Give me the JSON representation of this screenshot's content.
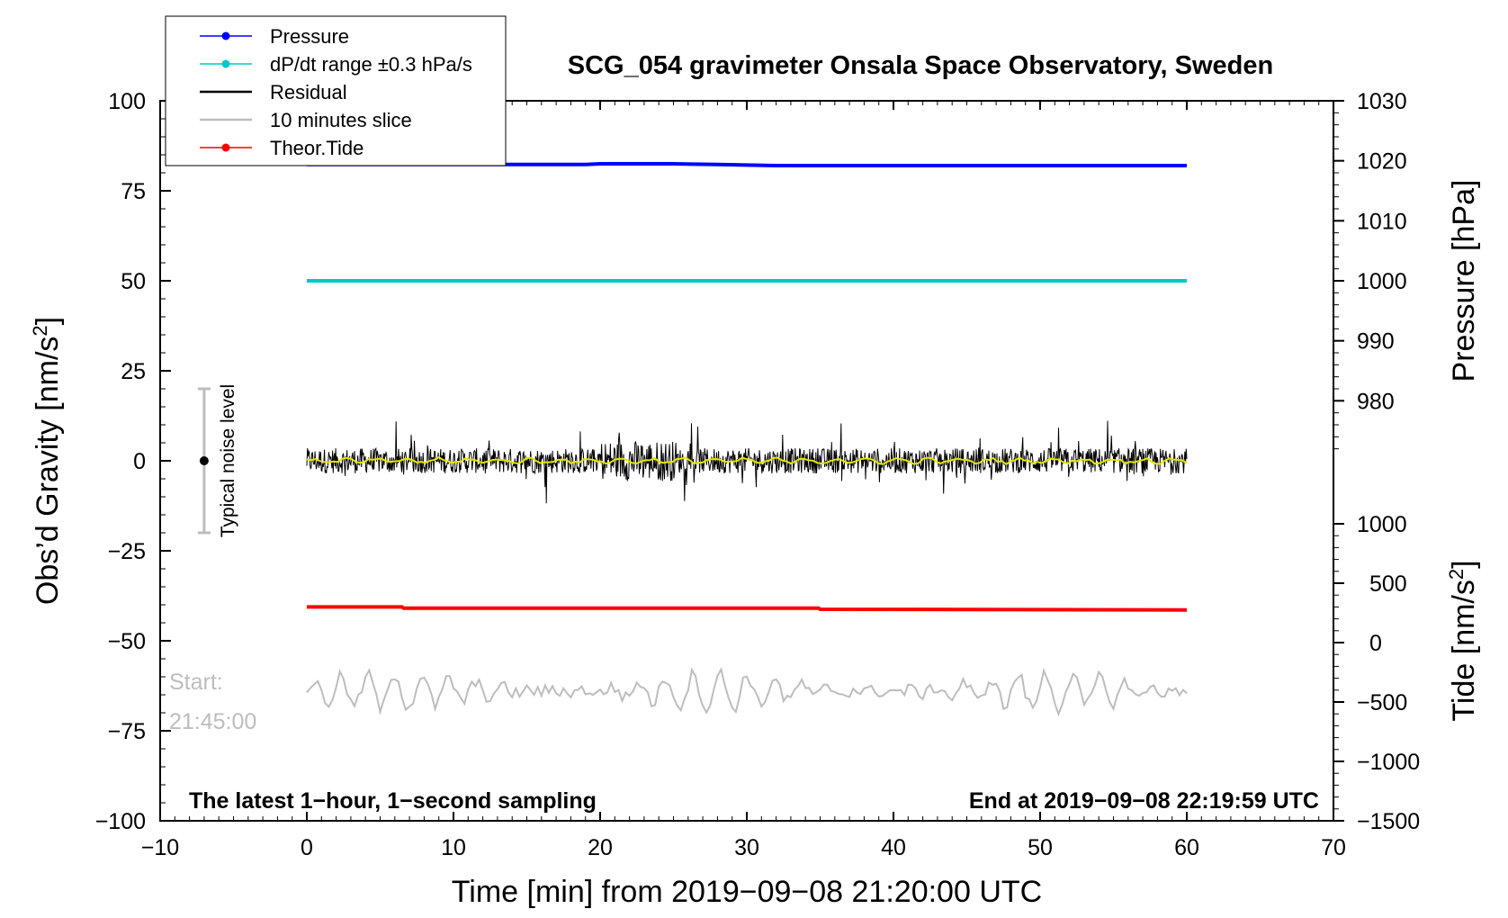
{
  "chart_data": {
    "type": "line",
    "title": "SCG_054 gravimeter Onsala Space Observatory, Sweden",
    "xlabel": "Time [min] from 2019−09−08 21:20:00 UTC",
    "ylabel_left": "Obs’d Gravity [nm/s",
    "ylabel_left_sup": "2",
    "ylabel_left_close": "]",
    "ylabel_right_pressure": "Pressure [hPa]",
    "ylabel_right_tide": "Tide [nm/s",
    "ylabel_right_tide_sup": "2",
    "ylabel_right_tide_close": "]",
    "xlim": [
      -10,
      70
    ],
    "ylim": [
      -100,
      100
    ],
    "x_ticks": [
      {
        "value": -10,
        "label": "−10"
      },
      {
        "value": 0,
        "label": "0"
      },
      {
        "value": 10,
        "label": "10"
      },
      {
        "value": 20,
        "label": "20"
      },
      {
        "value": 30,
        "label": "30"
      },
      {
        "value": 40,
        "label": "40"
      },
      {
        "value": 50,
        "label": "50"
      },
      {
        "value": 60,
        "label": "60"
      },
      {
        "value": 70,
        "label": "70"
      }
    ],
    "y_ticks": [
      {
        "value": 100,
        "label": "100"
      },
      {
        "value": 75,
        "label": "75"
      },
      {
        "value": 50,
        "label": "50"
      },
      {
        "value": 25,
        "label": "25"
      },
      {
        "value": 0,
        "label": "0"
      },
      {
        "value": -25,
        "label": "−25"
      },
      {
        "value": -50,
        "label": "−50"
      },
      {
        "value": -75,
        "label": "−75"
      },
      {
        "value": -100,
        "label": "−100"
      }
    ],
    "pressure_axis": {
      "range": [
        970,
        1030
      ],
      "ticks": [
        {
          "value": 1030,
          "label": "1030"
        },
        {
          "value": 1020,
          "label": "1020"
        },
        {
          "value": 1010,
          "label": "1010"
        },
        {
          "value": 1000,
          "label": "1000"
        },
        {
          "value": 990,
          "label": "990"
        },
        {
          "value": 980,
          "label": "980"
        }
      ]
    },
    "tide_axis": {
      "range": [
        -1500,
        1000
      ],
      "ticks": [
        {
          "value": 1000,
          "label": "1000"
        },
        {
          "value": 500,
          "label": "500"
        },
        {
          "value": 0,
          "label": "0"
        },
        {
          "value": -500,
          "label": "−500"
        },
        {
          "value": -1000,
          "label": "−1000"
        },
        {
          "value": -1500,
          "label": "−1500"
        }
      ]
    },
    "legend": {
      "position": "top-left",
      "entries": [
        {
          "label": "Pressure",
          "color": "#0000ff",
          "marker": true
        },
        {
          "label": "dP/dt range ±0.3 hPa/s",
          "color": "#00c8c8",
          "marker": true
        },
        {
          "label": "Residual",
          "color": "#000000",
          "marker": false
        },
        {
          "label": "10 minutes slice",
          "color": "#bdbdbd",
          "marker": false
        },
        {
          "label": "Theor.Tide",
          "color": "#ff0000",
          "marker": true
        }
      ]
    },
    "series": [
      {
        "name": "Pressure",
        "color": "#0000ff",
        "axis": "pressure",
        "x": [
          0,
          10,
          19,
          20,
          25,
          28,
          32,
          40,
          50,
          60
        ],
        "y": [
          1019.4,
          1019.4,
          1019.4,
          1019.5,
          1019.5,
          1019.4,
          1019.2,
          1019.2,
          1019.2,
          1019.2
        ]
      },
      {
        "name": "dP/dt range ±0.3 hPa/s",
        "color": "#00c8c8",
        "axis": "gravity",
        "x": [
          0,
          60
        ],
        "y": [
          50,
          50
        ]
      },
      {
        "name": "Residual",
        "color": "#000000",
        "axis": "gravity",
        "x_range": [
          0,
          60
        ],
        "center": 0,
        "typical_amplitude": 3.5,
        "max_amplitude": 9
      },
      {
        "name": "Theor.Tide",
        "color": "#ff0000",
        "axis": "tide",
        "x": [
          0,
          6.5,
          6.6,
          34.9,
          35,
          60
        ],
        "y": [
          300,
          300,
          290,
          290,
          280,
          275
        ]
      },
      {
        "name": "10 minutes slice",
        "color": "#bdbdbd",
        "axis": "gravity",
        "x_range": [
          0,
          60
        ],
        "center": -64,
        "typical_amplitude": 4,
        "max_amplitude": 8
      }
    ],
    "smoothed_residual_color": "#e6e600",
    "noise_bar": {
      "x": -7,
      "center": 0,
      "low": -20,
      "high": 20,
      "label": "Typical noise level"
    },
    "annotations": {
      "start_label": "Start:",
      "start_time": "21:45:00",
      "bottom_left": "The latest 1−hour, 1−second sampling",
      "bottom_right": "End at 2019−09−08 22:19:59 UTC"
    },
    "grid": false
  }
}
